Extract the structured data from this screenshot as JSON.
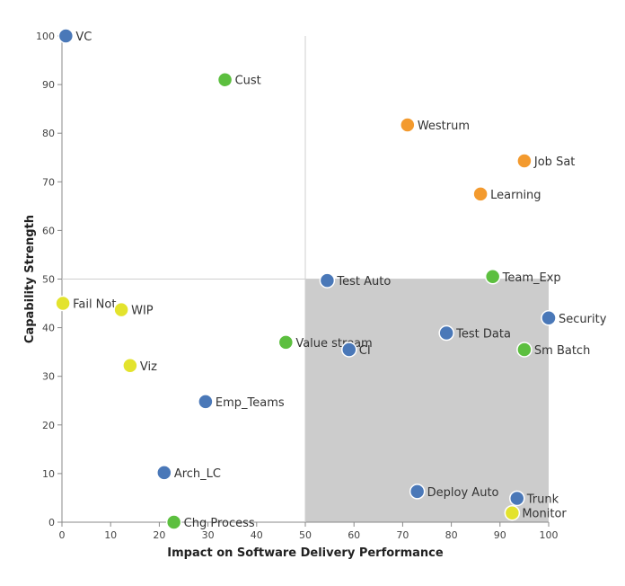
{
  "chart_data": {
    "type": "scatter",
    "xlabel": "Impact on Software Delivery Performance",
    "ylabel": "Capability Strength",
    "xlim": [
      0,
      100
    ],
    "ylim": [
      0,
      100
    ],
    "xticks": [
      0,
      10,
      20,
      30,
      40,
      50,
      60,
      70,
      80,
      90,
      100
    ],
    "yticks": [
      0,
      10,
      20,
      30,
      40,
      50,
      60,
      70,
      80,
      90,
      100
    ],
    "shaded_region": {
      "x": [
        50,
        100
      ],
      "y": [
        0,
        50
      ],
      "color": "#cccccc"
    },
    "reference_lines": {
      "x": 50,
      "y": 50
    },
    "colors": {
      "blue": "#4a78b8",
      "green": "#5cbf3f",
      "orange": "#f39a2e",
      "yellow": "#e3e32d"
    },
    "points": [
      {
        "label": "VC",
        "x": 0.8,
        "y": 100,
        "color": "blue"
      },
      {
        "label": "Cust",
        "x": 33.5,
        "y": 91,
        "color": "green"
      },
      {
        "label": "Westrum",
        "x": 71,
        "y": 81.7,
        "color": "orange"
      },
      {
        "label": "Job Sat",
        "x": 95,
        "y": 74.3,
        "color": "orange"
      },
      {
        "label": "Learning",
        "x": 86,
        "y": 67.5,
        "color": "orange"
      },
      {
        "label": "Team_Exp",
        "x": 88.5,
        "y": 50.5,
        "color": "green"
      },
      {
        "label": "Test Auto",
        "x": 54.5,
        "y": 49.7,
        "color": "blue"
      },
      {
        "label": "Fail Not",
        "x": 0.2,
        "y": 45,
        "color": "yellow"
      },
      {
        "label": "WIP",
        "x": 12.2,
        "y": 43.7,
        "color": "yellow"
      },
      {
        "label": "Security",
        "x": 100,
        "y": 42,
        "color": "blue"
      },
      {
        "label": "Test Data",
        "x": 79,
        "y": 38.9,
        "color": "blue"
      },
      {
        "label": "Value stream",
        "x": 46,
        "y": 37,
        "color": "green"
      },
      {
        "label": "CI",
        "x": 59,
        "y": 35.5,
        "color": "blue"
      },
      {
        "label": "Sm Batch",
        "x": 95,
        "y": 35.5,
        "color": "green"
      },
      {
        "label": "Viz",
        "x": 14,
        "y": 32.2,
        "color": "yellow"
      },
      {
        "label": "Emp_Teams",
        "x": 29.5,
        "y": 24.8,
        "color": "blue"
      },
      {
        "label": "Arch_LC",
        "x": 21,
        "y": 10.2,
        "color": "blue"
      },
      {
        "label": "Deploy Auto",
        "x": 73,
        "y": 6.3,
        "color": "blue"
      },
      {
        "label": "Trunk",
        "x": 93.5,
        "y": 4.9,
        "color": "blue"
      },
      {
        "label": "Monitor",
        "x": 92.5,
        "y": 1.9,
        "color": "yellow"
      },
      {
        "label": "Chg Process",
        "x": 23,
        "y": 0,
        "color": "green"
      }
    ]
  }
}
